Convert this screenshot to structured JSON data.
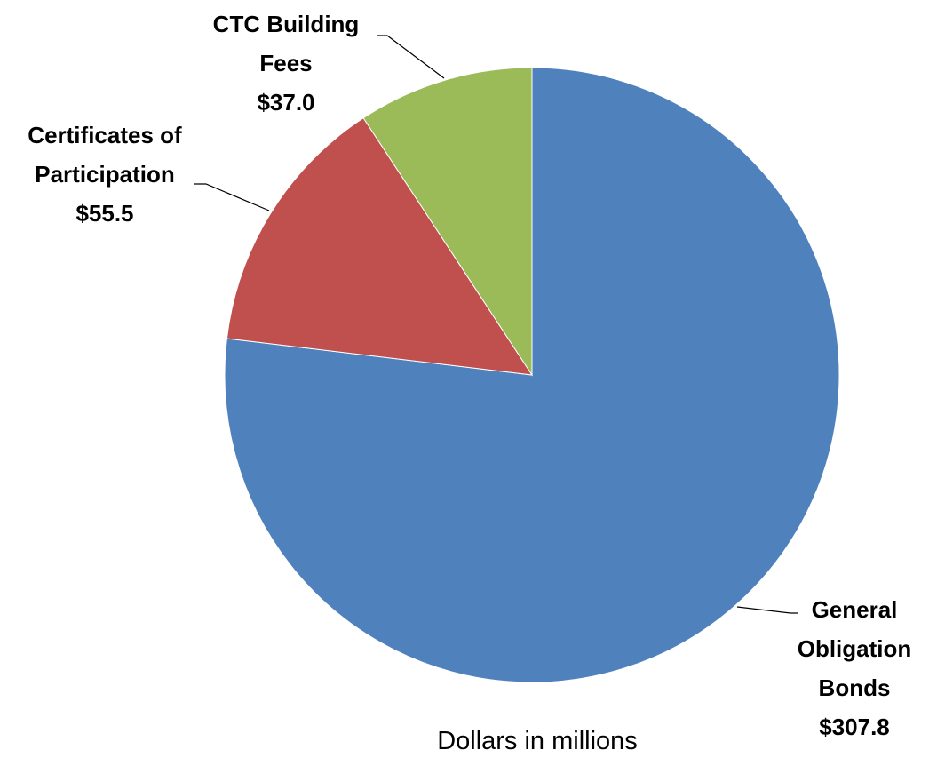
{
  "chart_data": {
    "type": "pie",
    "categories": [
      "General Obligation Bonds",
      "Certificates of Participation",
      "CTC Building Fees"
    ],
    "values": [
      307.8,
      55.5,
      37.0
    ],
    "value_labels": [
      "$307.8",
      "$55.5",
      "$37.0"
    ],
    "colors": [
      "#4f81bd",
      "#c0504d",
      "#9bbb59"
    ],
    "caption": "Dollars in millions"
  }
}
